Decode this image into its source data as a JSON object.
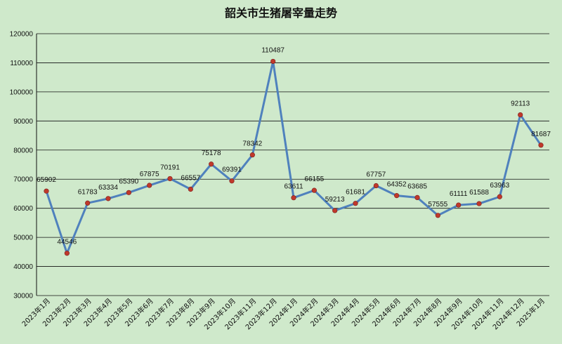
{
  "chart_data": {
    "type": "line",
    "title": "韶关市生猪屠宰量走势",
    "xlabel": "",
    "ylabel": "",
    "ylim": [
      30000,
      120000
    ],
    "yticks": [
      30000,
      40000,
      50000,
      60000,
      70000,
      80000,
      90000,
      100000,
      110000,
      120000
    ],
    "grid": true,
    "legend": "none",
    "categories": [
      "2023年1月",
      "2023年2月",
      "2023年3月",
      "2023年4月",
      "2023年5月",
      "2023年6月",
      "2023年7月",
      "2023年8月",
      "2023年9月",
      "2023年10月",
      "2023年11月",
      "2023年12月",
      "2024年1月",
      "2024年2月",
      "2024年3月",
      "2024年4月",
      "2024年5月",
      "2024年6月",
      "2024年7月",
      "2024年8月",
      "2024年9月",
      "2024年10月",
      "2024年11月",
      "2024年12月",
      "2025年1月"
    ],
    "series": [
      {
        "values": [
          65902,
          44546,
          61783,
          63334,
          65390,
          67875,
          70191,
          66557,
          75178,
          69391,
          78342,
          110487,
          63611,
          66155,
          59213,
          61681,
          67757,
          64352,
          63685,
          57555,
          61111,
          61588,
          63963,
          92113,
          81687
        ]
      }
    ],
    "colors": {
      "line": "#4f81bd",
      "marker": "#c0392b",
      "background": "#cfe9cb"
    }
  }
}
